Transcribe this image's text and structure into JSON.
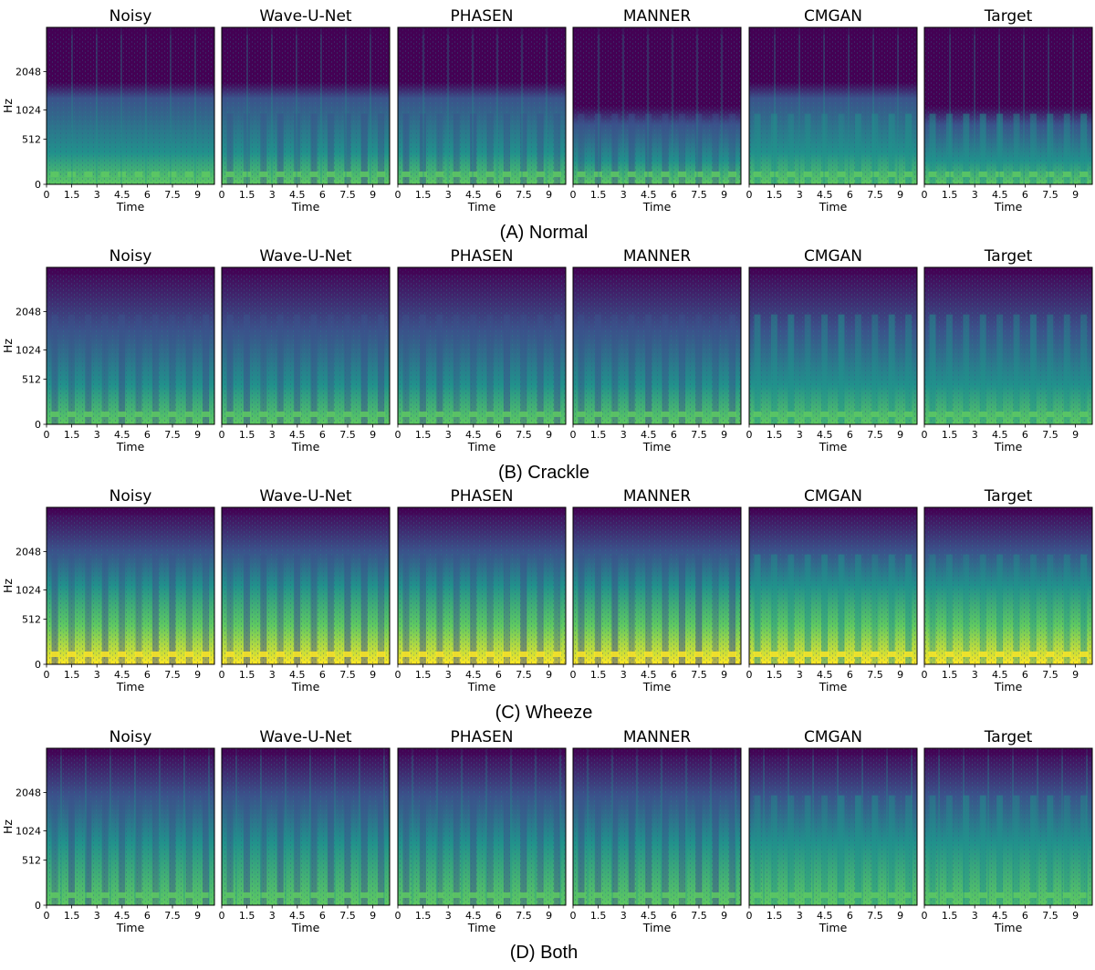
{
  "figure": {
    "colormap": [
      "#440154",
      "#3b528b",
      "#21918c",
      "#5ec962",
      "#fde725"
    ],
    "rows": [
      {
        "caption": "(A) Normal",
        "pattern": "normal"
      },
      {
        "caption": "(B) Crackle",
        "pattern": "crackle"
      },
      {
        "caption": "(C) Wheeze",
        "pattern": "wheeze"
      },
      {
        "caption": "(D) Both",
        "pattern": "both"
      }
    ],
    "methods": [
      "Noisy",
      "Wave-U-Net",
      "PHASEN",
      "MANNER",
      "CMGAN",
      "Target"
    ]
  },
  "chart_data": {
    "type": "heatmap",
    "xlabel": "Time",
    "ylabel": "Hz",
    "x_ticks": [
      "0",
      "1.5",
      "3",
      "4.5",
      "6",
      "7.5",
      "9"
    ],
    "x_tick_values": [
      0,
      1.5,
      3,
      4.5,
      6,
      7.5,
      9
    ],
    "xlim": [
      0,
      10
    ],
    "y_ticks": [
      "0",
      "512",
      "1024",
      "2048"
    ],
    "y_tick_values": [
      0,
      512,
      1024,
      2048
    ],
    "yscale": "mel",
    "ylim": [
      0,
      4000
    ]
  }
}
